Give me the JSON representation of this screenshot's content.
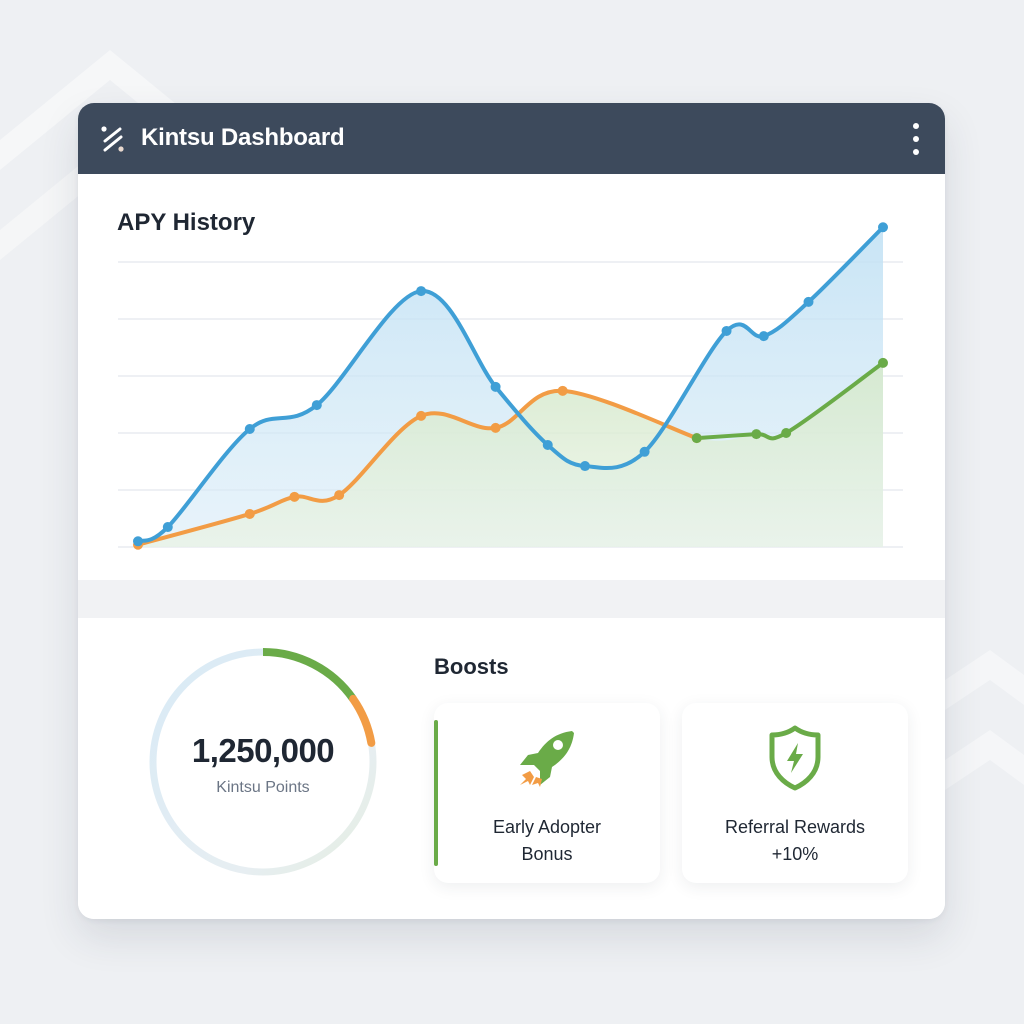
{
  "window": {
    "title": "Kintsu Dashboard",
    "logo_icon": "kintsu-logo-icon",
    "menu_icon": "more-vertical-icon"
  },
  "colors": {
    "header": "#3d4a5c",
    "background": "#eef0f3",
    "blue": "#3f9fd6",
    "orange": "#f29c45",
    "green": "#6aab48",
    "text_dark": "#1f2733",
    "text_muted": "#6b7585"
  },
  "apy": {
    "title": "APY History"
  },
  "chart_data": {
    "type": "area",
    "title": "APY History",
    "xlabel": "",
    "ylabel": "",
    "grid": true,
    "gridlines": 6,
    "ylim": [
      0,
      5
    ],
    "legend": "none",
    "series": [
      {
        "name": "APY (blue)",
        "color": "#3f9fd6",
        "x": [
          0,
          0.04,
          0.15,
          0.24,
          0.38,
          0.48,
          0.55,
          0.6,
          0.68,
          0.79,
          0.84,
          0.9,
          1.0
        ],
        "values": [
          0.1,
          0.35,
          2.07,
          2.49,
          4.49,
          2.81,
          1.79,
          1.42,
          1.67,
          3.79,
          3.7,
          4.3,
          5.61
        ]
      },
      {
        "name": "APY (orange)",
        "color": "#f29c45",
        "x": [
          0,
          0.15,
          0.21,
          0.27,
          0.38,
          0.48,
          0.57,
          0.75
        ],
        "values": [
          0.04,
          0.58,
          0.88,
          0.91,
          2.3,
          2.09,
          2.74,
          1.91
        ]
      },
      {
        "name": "APY (green)",
        "color": "#6aab48",
        "x": [
          0.75,
          0.83,
          0.87,
          1.0
        ],
        "values": [
          1.91,
          1.98,
          2.0,
          3.23
        ]
      }
    ]
  },
  "points": {
    "value": "1,250,000",
    "label": "Kintsu Points",
    "ring_segments": [
      {
        "name": "green",
        "color": "#6aab48",
        "start_deg": 0,
        "end_deg": 55
      },
      {
        "name": "orange",
        "color": "#f29c45",
        "start_deg": 55,
        "end_deg": 80
      }
    ]
  },
  "boosts": {
    "title": "Boosts",
    "items": [
      {
        "label_line1": "Early Adopter",
        "label_line2": "Bonus",
        "icon": "rocket-icon"
      },
      {
        "label_line1": "Referral Rewards",
        "label_line2": "+10%",
        "icon": "shield-bolt-icon"
      }
    ]
  }
}
